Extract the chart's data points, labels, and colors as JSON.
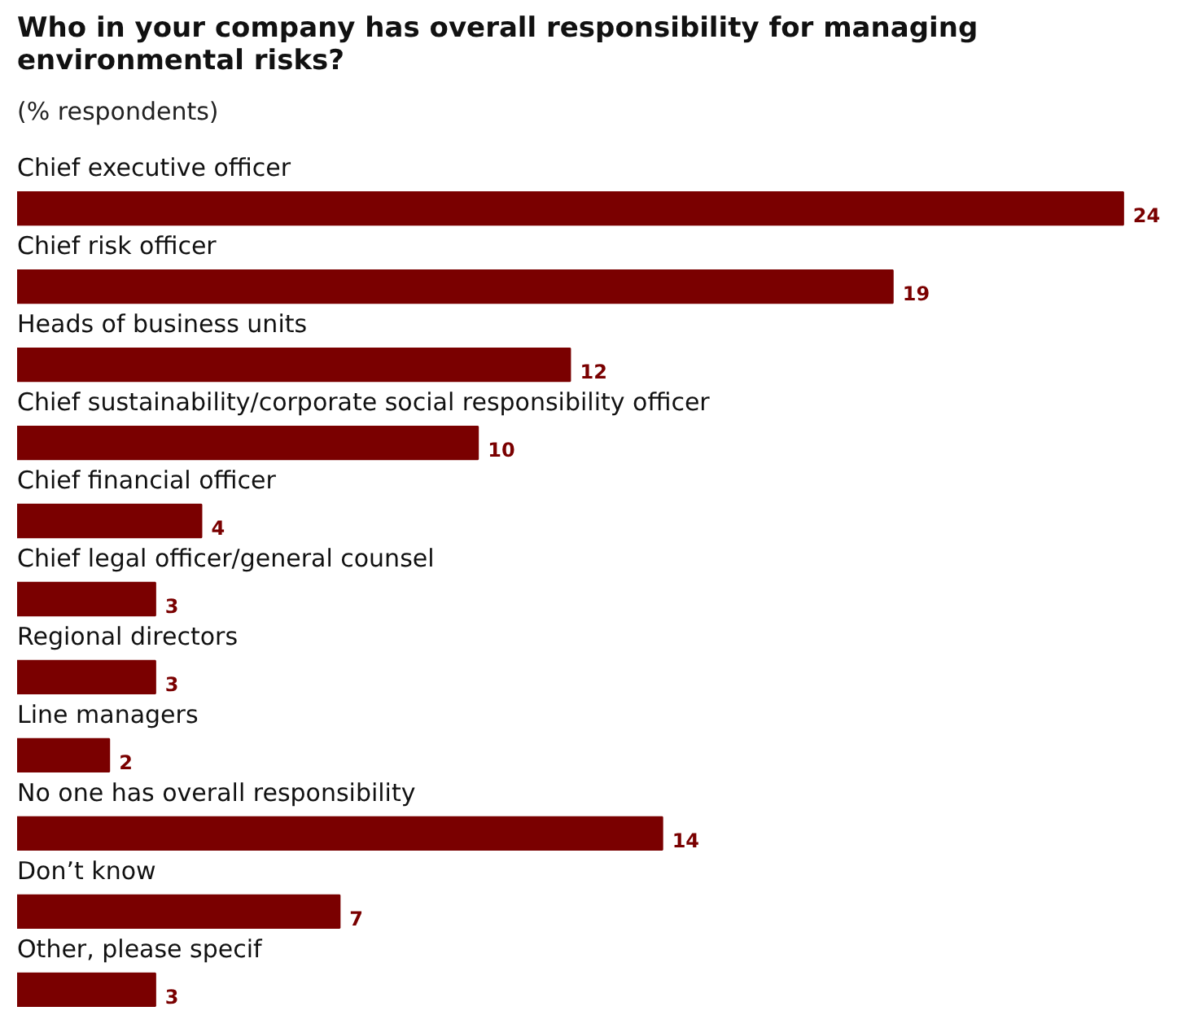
{
  "chart_data": {
    "type": "bar",
    "orientation": "horizontal",
    "title": "Who in your company has overall responsibility for managing environmental risks?",
    "subtitle": "(% respondents)",
    "categories": [
      "Chief executive officer",
      "Chief risk officer",
      "Heads of business units",
      "Chief sustainability/corporate social responsibility officer",
      "Chief financial officer",
      "Chief legal officer/general counsel",
      "Regional directors",
      "Line managers",
      "No one has overall responsibility",
      "Don’t know",
      "Other, please specif"
    ],
    "values": [
      24,
      19,
      12,
      10,
      4,
      3,
      3,
      2,
      14,
      7,
      3
    ],
    "color": "#7a0000",
    "data_labels": true,
    "tick_labels": false
  }
}
